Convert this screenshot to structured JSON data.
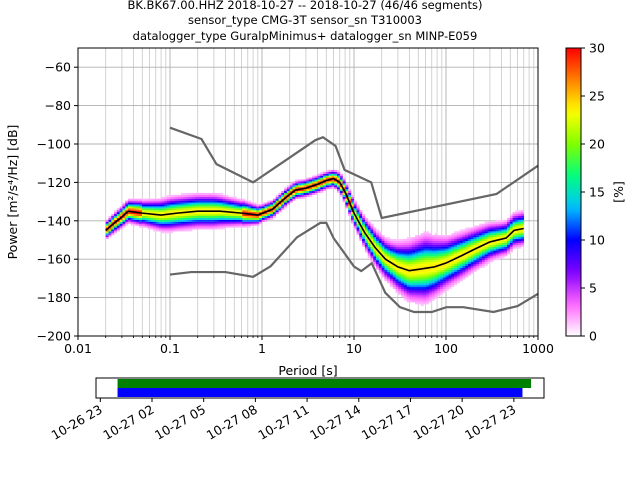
{
  "figure": {
    "title_line1": "BK.BK67.00.HHZ   2018-10-27 -- 2018-10-27  (46/46 segments)",
    "title_line2": "sensor_type CMG-3T sensor_sn T310003",
    "title_line3": "datalogger_type GuralpMinimus+ datalogger_sn MINP-E059"
  },
  "chart_data": [
    {
      "type": "heatmap",
      "xlabel": "Period [s]",
      "ylabel": "Power [m²/s⁴/Hz] [dB]",
      "xscale": "log",
      "xlim": [
        0.01,
        1000
      ],
      "ylim": [
        -200,
        -50
      ],
      "xticks": [
        {
          "value": 0.01,
          "label": "0.01"
        },
        {
          "value": 0.1,
          "label": "0.1"
        },
        {
          "value": 1,
          "label": "1"
        },
        {
          "value": 10,
          "label": "10"
        },
        {
          "value": 100,
          "label": "100"
        },
        {
          "value": 1000,
          "label": "1000"
        }
      ],
      "yticks": [
        {
          "value": -60,
          "label": "−60"
        },
        {
          "value": -80,
          "label": "−80"
        },
        {
          "value": -100,
          "label": "−100"
        },
        {
          "value": -120,
          "label": "−120"
        },
        {
          "value": -140,
          "label": "−140"
        },
        {
          "value": -160,
          "label": "−160"
        },
        {
          "value": -180,
          "label": "−180"
        },
        {
          "value": -200,
          "label": "−200"
        }
      ],
      "grid": true,
      "colorbar": {
        "label": "[%]",
        "range": [
          0,
          30
        ],
        "ticks": [
          {
            "value": 0,
            "label": "0"
          },
          {
            "value": 5,
            "label": "5"
          },
          {
            "value": 10,
            "label": "10"
          },
          {
            "value": 15,
            "label": "15"
          },
          {
            "value": 20,
            "label": "20"
          },
          {
            "value": 25,
            "label": "25"
          },
          {
            "value": 30,
            "label": "30"
          }
        ],
        "colors": [
          "#ffffff",
          "#ff66ff",
          "#8000ff",
          "#0000ff",
          "#00c0ff",
          "#00ff80",
          "#80ff00",
          "#ffff00",
          "#ff8000",
          "#ff0000"
        ]
      },
      "mean_curve": [
        [
          0.02,
          -145
        ],
        [
          0.025,
          -141
        ],
        [
          0.03,
          -138
        ],
        [
          0.035,
          -135
        ],
        [
          0.05,
          -136
        ],
        [
          0.08,
          -137
        ],
        [
          0.12,
          -136
        ],
        [
          0.2,
          -135
        ],
        [
          0.35,
          -135
        ],
        [
          0.6,
          -136
        ],
        [
          0.9,
          -137
        ],
        [
          1.3,
          -134
        ],
        [
          1.8,
          -128
        ],
        [
          2.3,
          -124
        ],
        [
          3,
          -123
        ],
        [
          4,
          -121
        ],
        [
          5,
          -119
        ],
        [
          6,
          -118
        ],
        [
          7,
          -120
        ],
        [
          8,
          -125
        ],
        [
          10,
          -136
        ],
        [
          13,
          -146
        ],
        [
          17,
          -154
        ],
        [
          22,
          -160
        ],
        [
          30,
          -164
        ],
        [
          40,
          -166
        ],
        [
          55,
          -165
        ],
        [
          75,
          -164
        ],
        [
          100,
          -162
        ],
        [
          150,
          -158
        ],
        [
          200,
          -155
        ],
        [
          300,
          -151
        ],
        [
          450,
          -149
        ],
        [
          550,
          -145
        ],
        [
          700,
          -144
        ]
      ],
      "psd_spread": [
        [
          0.02,
          2
        ],
        [
          0.05,
          3
        ],
        [
          0.1,
          4
        ],
        [
          0.3,
          4
        ],
        [
          0.6,
          3
        ],
        [
          1,
          2
        ],
        [
          3,
          2
        ],
        [
          6,
          2
        ],
        [
          10,
          3
        ],
        [
          15,
          4
        ],
        [
          25,
          5
        ],
        [
          40,
          7
        ],
        [
          60,
          8
        ],
        [
          100,
          6
        ],
        [
          200,
          5
        ],
        [
          400,
          4
        ],
        [
          700,
          4
        ]
      ],
      "noise_model_high": [
        [
          0.1,
          -91.5
        ],
        [
          0.22,
          -97.4
        ],
        [
          0.32,
          -110.5
        ],
        [
          0.8,
          -120
        ],
        [
          3.8,
          -98
        ],
        [
          4.6,
          -96.5
        ],
        [
          6.3,
          -101
        ],
        [
          7.9,
          -113.5
        ],
        [
          15.4,
          -120
        ],
        [
          20,
          -138.5
        ],
        [
          354.8,
          -126
        ],
        [
          1000,
          -111.3
        ]
      ],
      "noise_model_low": [
        [
          0.1,
          -168
        ],
        [
          0.17,
          -166.7
        ],
        [
          0.4,
          -166.7
        ],
        [
          0.8,
          -169.2
        ],
        [
          1.24,
          -163.7
        ],
        [
          2.4,
          -148.6
        ],
        [
          4.3,
          -141.1
        ],
        [
          5,
          -141.1
        ],
        [
          6,
          -149
        ],
        [
          10,
          -163.8
        ],
        [
          12,
          -166.2
        ],
        [
          15.6,
          -162.1
        ],
        [
          21.9,
          -177.5
        ],
        [
          31.6,
          -185
        ],
        [
          45,
          -187.5
        ],
        [
          70,
          -187.5
        ],
        [
          101,
          -185
        ],
        [
          154,
          -185
        ],
        [
          328,
          -187.5
        ],
        [
          600,
          -184.4
        ],
        [
          1000,
          -178
        ]
      ]
    },
    {
      "type": "timeline",
      "x_ticks": [
        "10-26 23",
        "10-27 02",
        "10-27 05",
        "10-27 08",
        "10-27 11",
        "10-27 14",
        "10-27 17",
        "10-27 20",
        "10-27 23"
      ],
      "xlim": [
        "2018-10-26 22:45",
        "2018-10-28 00:45"
      ],
      "bars": [
        {
          "color": "#008000",
          "start": "2018-10-27 00:00",
          "end": "2018-10-28 00:00"
        },
        {
          "color": "#0000ff",
          "start": "2018-10-27 00:00",
          "end": "2018-10-27 23:30"
        }
      ]
    }
  ]
}
